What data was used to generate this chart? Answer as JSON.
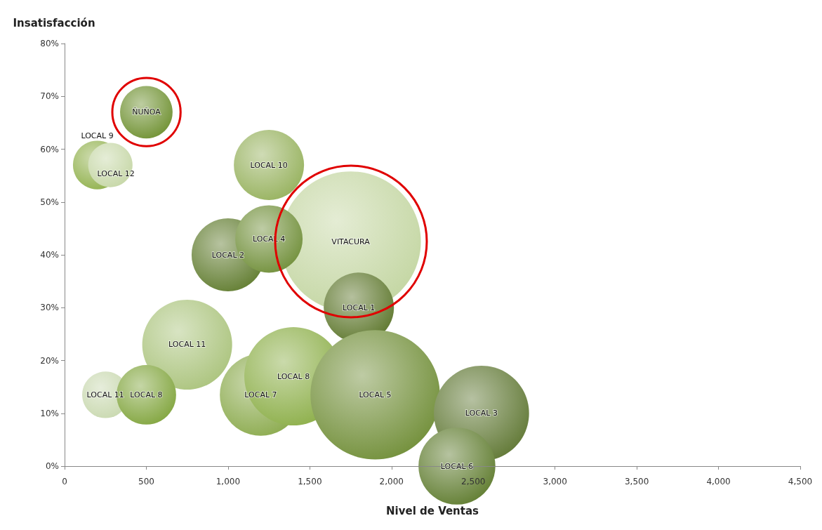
{
  "chart_data": {
    "type": "bubble",
    "xlabel": "Nivel de Ventas",
    "ylabel": "Insatisfacción",
    "xlim": [
      0,
      4500
    ],
    "xticks": [
      0,
      {
        "value": 500,
        "label": "500"
      },
      {
        "value": 1000,
        "label": "1,000"
      },
      {
        "value": 1500,
        "label": "1,500"
      },
      {
        "value": 2000,
        "label": "2,000"
      },
      {
        "value": 2500,
        "label": "2,500"
      },
      {
        "value": 3000,
        "label": "3,000"
      },
      {
        "value": 3500,
        "label": "3,500"
      },
      {
        "value": 4000,
        "label": "4,000"
      },
      {
        "value": 4500,
        "label": "4,500"
      }
    ],
    "ylim": [
      0,
      80
    ],
    "yticks": [
      {
        "value": 0,
        "label": "0%"
      },
      {
        "value": 10,
        "label": "10%"
      },
      {
        "value": 20,
        "label": "20%"
      },
      {
        "value": 30,
        "label": "30%"
      },
      {
        "value": 40,
        "label": "40%"
      },
      {
        "value": 50,
        "label": "50%"
      },
      {
        "value": 60,
        "label": "60%"
      },
      {
        "value": 70,
        "label": "70%"
      },
      {
        "value": 80,
        "label": "80%"
      }
    ],
    "grid": false,
    "legend": false,
    "series": [
      {
        "name": "LOCAL 9",
        "color": "#8fb04a",
        "x": [
          200
        ],
        "values": [
          57
        ],
        "sizes": [
          0.12
        ]
      },
      {
        "name": "LOCAL 12",
        "color": "#c5d6a5",
        "x": [
          280
        ],
        "values": [
          57
        ],
        "sizes": [
          0.1
        ]
      },
      {
        "name": "ÑUÑOA",
        "color": "#6d8f2e",
        "x": [
          500
        ],
        "values": [
          67
        ],
        "sizes": [
          0.14
        ]
      },
      {
        "name": "LOCAL 10",
        "color": "#94b05a",
        "x": [
          1250
        ],
        "values": [
          57
        ],
        "sizes": [
          0.25
        ]
      },
      {
        "name": "VITACURA",
        "color": "#c2d5a0",
        "x": [
          1750
        ],
        "values": [
          42.5
        ],
        "sizes": [
          1
        ]
      },
      {
        "name": "LOCAL 2",
        "color": "#5e7a2c",
        "x": [
          1000
        ],
        "values": [
          40
        ],
        "sizes": [
          0.27
        ]
      },
      {
        "name": "LOCAL 4",
        "color": "#6e8d36",
        "x": [
          1250
        ],
        "values": [
          43
        ],
        "sizes": [
          0.23
        ]
      },
      {
        "name": "LOCAL 1",
        "color": "#5a7428",
        "x": [
          1800
        ],
        "values": [
          30
        ],
        "sizes": [
          0.25
        ]
      },
      {
        "name": "LOCAL 11",
        "color": "#a9c27a",
        "x": [
          750
        ],
        "values": [
          23
        ],
        "sizes": [
          0.41
        ]
      },
      {
        "name": "LOCAL 11",
        "color": "#c8d8ae",
        "x": [
          250
        ],
        "values": [
          13.5
        ],
        "sizes": [
          0.11
        ]
      },
      {
        "name": "LOCAL 8",
        "color": "#7fa33a",
        "x": [
          500
        ],
        "values": [
          13.5
        ],
        "sizes": [
          0.18
        ]
      },
      {
        "name": "LOCAL 7",
        "color": "#89a94a",
        "x": [
          1200
        ],
        "values": [
          13.5
        ],
        "sizes": [
          0.34
        ]
      },
      {
        "name": "LOCAL 8",
        "color": "#8aad45",
        "x": [
          1400
        ],
        "values": [
          17
        ],
        "sizes": [
          0.49
        ]
      },
      {
        "name": "LOCAL 5",
        "color": "#6e8c34",
        "x": [
          1900
        ],
        "values": [
          13.5
        ],
        "sizes": [
          0.85
        ]
      },
      {
        "name": "LOCAL 3",
        "color": "#5d7530",
        "x": [
          2550
        ],
        "values": [
          10
        ],
        "sizes": [
          0.46
        ]
      },
      {
        "name": "LOCAL 6",
        "color": "#5d7a2c",
        "x": [
          2400
        ],
        "values": [
          0
        ],
        "sizes": [
          0.3
        ]
      }
    ]
  }
}
